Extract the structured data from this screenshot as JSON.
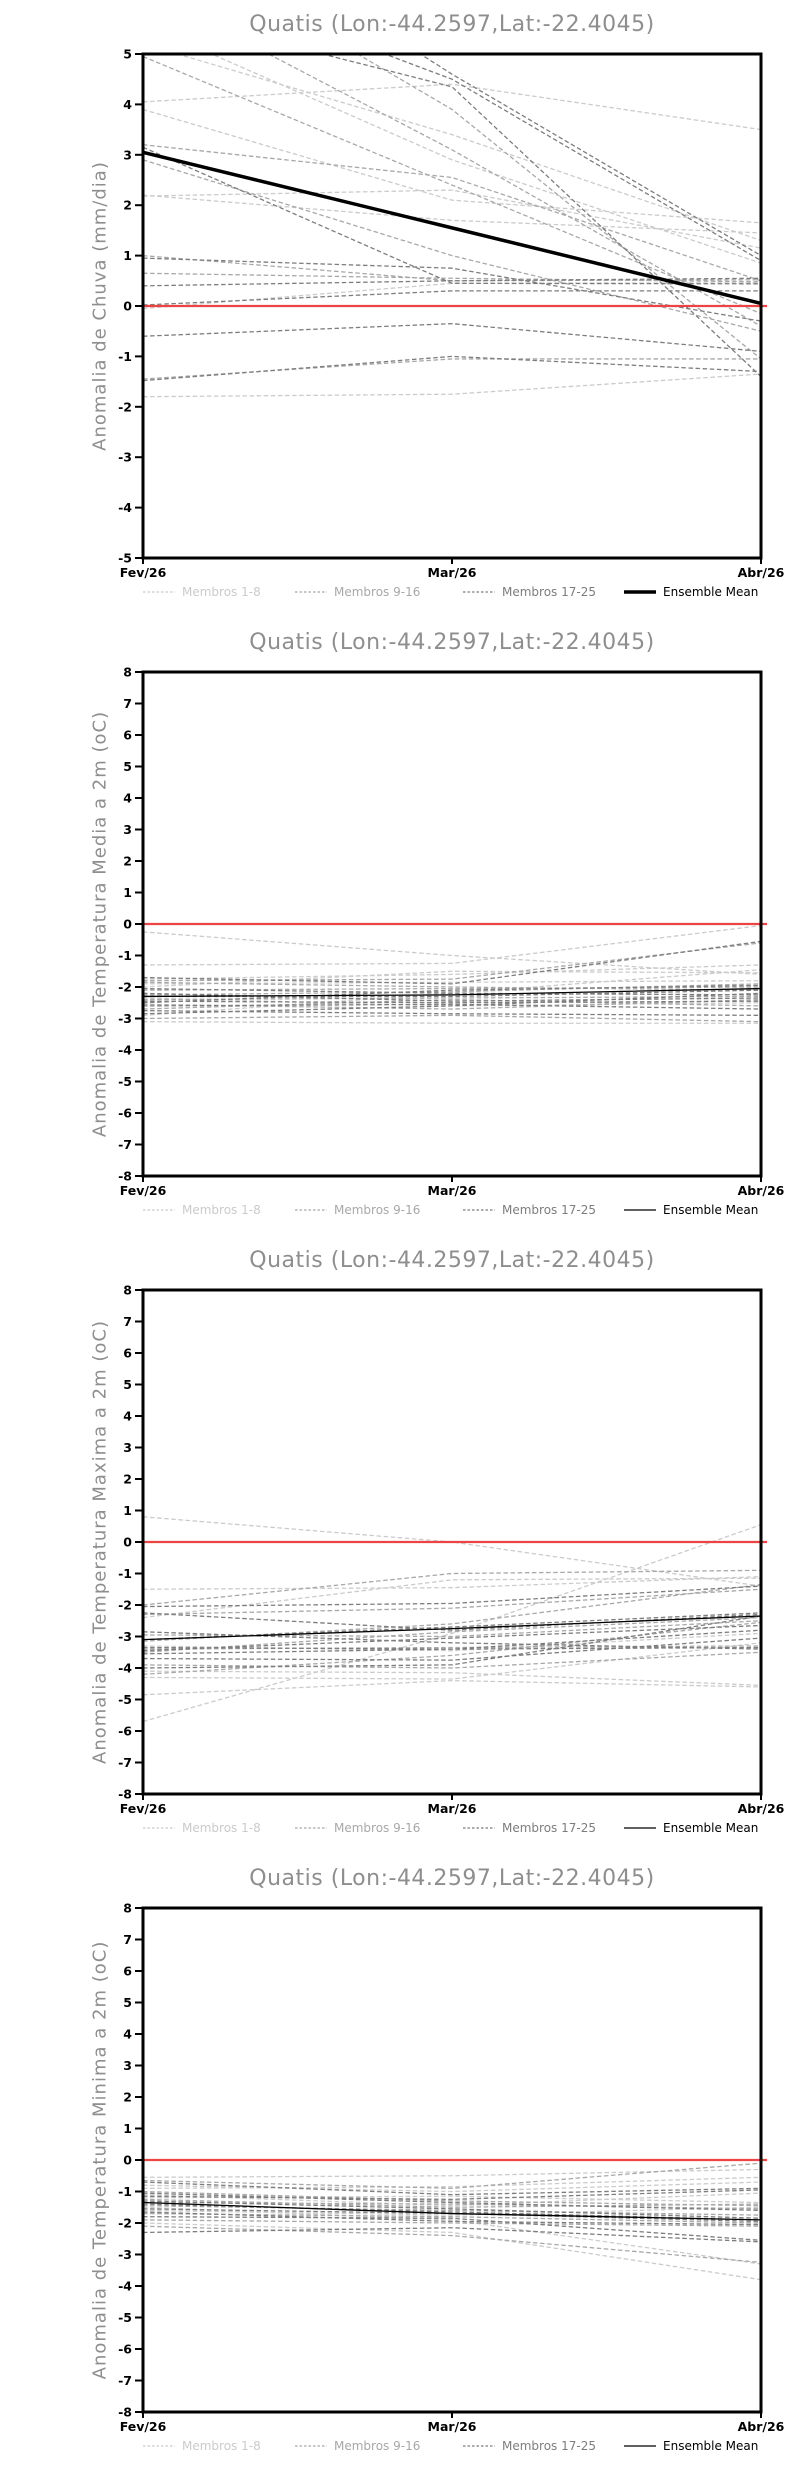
{
  "page": {
    "background": "#ffffff",
    "title_color": "#8e8e8e",
    "axis_color": "#000000"
  },
  "chart_data": [
    {
      "type": "line",
      "title": "Quatis (Lon:-44.2597,Lat:-22.4045)",
      "ylabel": "Anomalia de Chuva (mm/dia)",
      "x_labels": [
        "Fev/26",
        "Mar/26",
        "Abr/26"
      ],
      "ylim": [
        -5,
        5
      ],
      "ytick_step": 1,
      "grid": false,
      "legend_position": "bottom",
      "zero_line": {
        "value": 0,
        "color": "#ee4343"
      },
      "mean": {
        "label": "Ensemble Mean",
        "color": "#000000",
        "width": 3.5,
        "values": [
          3.05,
          1.55,
          0.05
        ]
      },
      "groups": [
        {
          "label": "Membros 1-8",
          "color": "#cbcbcb"
        },
        {
          "label": "Membros 9-16",
          "color": "#a8a8a8"
        },
        {
          "label": "Membros 17-25",
          "color": "#7d7d7d"
        }
      ],
      "members": [
        {
          "group": 0,
          "values": [
            4.05,
            4.4,
            3.5
          ]
        },
        {
          "group": 0,
          "values": [
            3.9,
            2.1,
            1.65
          ]
        },
        {
          "group": 0,
          "values": [
            2.2,
            1.7,
            1.45
          ]
        },
        {
          "group": 0,
          "values": [
            2.18,
            2.3,
            1.15
          ]
        },
        {
          "group": 0,
          "values": [
            -1.8,
            -1.75,
            -1.35
          ]
        },
        {
          "group": 0,
          "values": [
            5.6,
            2.9,
            0.85
          ]
        },
        {
          "group": 0,
          "values": [
            5.2,
            3.4,
            1.3
          ]
        },
        {
          "group": 0,
          "values": [
            -0.05,
            0.45,
            0.46
          ]
        },
        {
          "group": 1,
          "values": [
            6.3,
            3.1,
            -0.4
          ]
        },
        {
          "group": 1,
          "values": [
            4.95,
            2.4,
            -0.15
          ]
        },
        {
          "group": 1,
          "values": [
            3.2,
            2.55,
            0.5
          ]
        },
        {
          "group": 1,
          "values": [
            1.0,
            0.5,
            0.52
          ]
        },
        {
          "group": 1,
          "values": [
            0.65,
            0.55,
            0.48
          ]
        },
        {
          "group": 1,
          "values": [
            -1.45,
            -1.05,
            -1.05
          ]
        },
        {
          "group": 1,
          "values": [
            2.9,
            1.0,
            -0.5
          ]
        },
        {
          "group": 1,
          "values": [
            7.5,
            3.9,
            -1.05
          ]
        },
        {
          "group": 2,
          "values": [
            3.15,
            0.45,
            0.44
          ]
        },
        {
          "group": 2,
          "values": [
            0.95,
            0.75,
            -0.3
          ]
        },
        {
          "group": 2,
          "values": [
            0.4,
            0.5,
            0.55
          ]
        },
        {
          "group": 2,
          "values": [
            0.02,
            0.3,
            0.3
          ]
        },
        {
          "group": 2,
          "values": [
            -0.6,
            -0.35,
            -0.9
          ]
        },
        {
          "group": 2,
          "values": [
            -1.48,
            -1.0,
            -1.3
          ]
        },
        {
          "group": 2,
          "values": [
            6.8,
            4.5,
            0.9
          ]
        },
        {
          "group": 2,
          "values": [
            5.9,
            4.35,
            -1.4
          ]
        },
        {
          "group": 2,
          "values": [
            8.5,
            4.6,
            1.0
          ]
        }
      ]
    },
    {
      "type": "line",
      "title": "Quatis (Lon:-44.2597,Lat:-22.4045)",
      "ylabel": "Anomalia de Temperatura Media a 2m (oC)",
      "x_labels": [
        "Fev/26",
        "Mar/26",
        "Abr/26"
      ],
      "ylim": [
        -8,
        8
      ],
      "ytick_step": 1,
      "grid": false,
      "legend_position": "bottom",
      "zero_line": {
        "value": 0,
        "color": "#ee4343"
      },
      "mean": {
        "label": "Ensemble Mean",
        "color": "#000000",
        "width": 1.3,
        "values": [
          -2.3,
          -2.25,
          -2.05
        ]
      },
      "groups": [
        {
          "label": "Membros 1-8",
          "color": "#cbcbcb"
        },
        {
          "label": "Membros 9-16",
          "color": "#a8a8a8"
        },
        {
          "label": "Membros 17-25",
          "color": "#7d7d7d"
        }
      ],
      "members": [
        {
          "group": 0,
          "values": [
            -0.25,
            -1.0,
            -1.6
          ]
        },
        {
          "group": 0,
          "values": [
            -1.3,
            -1.25,
            -0.05
          ]
        },
        {
          "group": 0,
          "values": [
            -1.75,
            -1.6,
            -1.3
          ]
        },
        {
          "group": 0,
          "values": [
            -2.9,
            -2.2,
            -1.45
          ]
        },
        {
          "group": 0,
          "values": [
            -3.1,
            -3.15,
            -3.15
          ]
        },
        {
          "group": 0,
          "values": [
            -2.0,
            -1.5,
            -1.55
          ]
        },
        {
          "group": 0,
          "values": [
            -2.35,
            -2.6,
            -2.5
          ]
        },
        {
          "group": 0,
          "values": [
            -1.9,
            -1.85,
            -1.8
          ]
        },
        {
          "group": 1,
          "values": [
            -1.8,
            -1.75,
            -0.6
          ]
        },
        {
          "group": 1,
          "values": [
            -2.1,
            -2.05,
            -2.0
          ]
        },
        {
          "group": 1,
          "values": [
            -2.4,
            -2.35,
            -2.3
          ]
        },
        {
          "group": 1,
          "values": [
            -2.55,
            -2.7,
            -2.4
          ]
        },
        {
          "group": 1,
          "values": [
            -2.7,
            -2.4,
            -2.6
          ]
        },
        {
          "group": 1,
          "values": [
            -3.0,
            -2.9,
            -3.1
          ]
        },
        {
          "group": 1,
          "values": [
            -1.85,
            -2.0,
            -2.1
          ]
        },
        {
          "group": 1,
          "values": [
            -2.25,
            -2.15,
            -1.9
          ]
        },
        {
          "group": 2,
          "values": [
            -1.7,
            -1.9,
            -0.55
          ]
        },
        {
          "group": 2,
          "values": [
            -2.05,
            -2.2,
            -2.25
          ]
        },
        {
          "group": 2,
          "values": [
            -2.3,
            -2.3,
            -2.1
          ]
        },
        {
          "group": 2,
          "values": [
            -2.45,
            -2.5,
            -2.45
          ]
        },
        {
          "group": 2,
          "values": [
            -2.6,
            -2.55,
            -2.7
          ]
        },
        {
          "group": 2,
          "values": [
            -2.75,
            -2.85,
            -2.9
          ]
        },
        {
          "group": 2,
          "values": [
            -2.85,
            -2.6,
            -2.2
          ]
        },
        {
          "group": 2,
          "values": [
            -2.2,
            -2.45,
            -2.35
          ]
        },
        {
          "group": 2,
          "values": [
            -2.5,
            -2.1,
            -1.95
          ]
        }
      ]
    },
    {
      "type": "line",
      "title": "Quatis (Lon:-44.2597,Lat:-22.4045)",
      "ylabel": "Anomalia de Temperatura Maxima a 2m (oC)",
      "x_labels": [
        "Fev/26",
        "Mar/26",
        "Abr/26"
      ],
      "ylim": [
        -8,
        8
      ],
      "ytick_step": 1,
      "grid": false,
      "legend_position": "bottom",
      "zero_line": {
        "value": 0,
        "color": "#ee4343"
      },
      "mean": {
        "label": "Ensemble Mean",
        "color": "#000000",
        "width": 1.3,
        "values": [
          -3.1,
          -2.75,
          -2.35
        ]
      },
      "groups": [
        {
          "label": "Membros 1-8",
          "color": "#cbcbcb"
        },
        {
          "label": "Membros 9-16",
          "color": "#a8a8a8"
        },
        {
          "label": "Membros 17-25",
          "color": "#7d7d7d"
        }
      ],
      "members": [
        {
          "group": 0,
          "values": [
            0.8,
            0.0,
            -1.4
          ]
        },
        {
          "group": 0,
          "values": [
            -1.5,
            -1.45,
            -1.1
          ]
        },
        {
          "group": 0,
          "values": [
            -4.85,
            -4.4,
            -4.6
          ]
        },
        {
          "group": 0,
          "values": [
            -5.7,
            -2.9,
            0.55
          ]
        },
        {
          "group": 0,
          "values": [
            -4.3,
            -4.35,
            -3.2
          ]
        },
        {
          "group": 0,
          "values": [
            -2.4,
            -1.2,
            -1.15
          ]
        },
        {
          "group": 0,
          "values": [
            -3.3,
            -3.45,
            -2.9
          ]
        },
        {
          "group": 0,
          "values": [
            -4.1,
            -4.15,
            -4.55
          ]
        },
        {
          "group": 1,
          "values": [
            -2.0,
            -1.0,
            -0.9
          ]
        },
        {
          "group": 1,
          "values": [
            -2.3,
            -2.1,
            -1.5
          ]
        },
        {
          "group": 1,
          "values": [
            -3.5,
            -2.85,
            -2.4
          ]
        },
        {
          "group": 1,
          "values": [
            -3.4,
            -3.35,
            -3.3
          ]
        },
        {
          "group": 1,
          "values": [
            -4.2,
            -3.6,
            -2.55
          ]
        },
        {
          "group": 1,
          "values": [
            -3.9,
            -4.0,
            -3.5
          ]
        },
        {
          "group": 1,
          "values": [
            -2.95,
            -3.0,
            -2.5
          ]
        },
        {
          "group": 1,
          "values": [
            -3.15,
            -2.6,
            -1.35
          ]
        },
        {
          "group": 2,
          "values": [
            -2.05,
            -1.95,
            -1.4
          ]
        },
        {
          "group": 2,
          "values": [
            -2.25,
            -2.8,
            -2.3
          ]
        },
        {
          "group": 2,
          "values": [
            -3.35,
            -3.4,
            -2.8
          ]
        },
        {
          "group": 2,
          "values": [
            -3.55,
            -3.4,
            -3.35
          ]
        },
        {
          "group": 2,
          "values": [
            -3.7,
            -3.75,
            -3.05
          ]
        },
        {
          "group": 2,
          "values": [
            -4.0,
            -3.9,
            -2.35
          ]
        },
        {
          "group": 2,
          "values": [
            -3.1,
            -2.7,
            -2.25
          ]
        },
        {
          "group": 2,
          "values": [
            -3.45,
            -3.05,
            -2.65
          ]
        },
        {
          "group": 2,
          "values": [
            -2.85,
            -3.2,
            -3.4
          ]
        }
      ]
    },
    {
      "type": "line",
      "title": "Quatis (Lon:-44.2597,Lat:-22.4045)",
      "ylabel": "Anomalia de Temperatura Minima a 2m (oC)",
      "x_labels": [
        "Fev/26",
        "Mar/26",
        "Abr/26"
      ],
      "ylim": [
        -8,
        8
      ],
      "ytick_step": 1,
      "grid": false,
      "legend_position": "bottom",
      "zero_line": {
        "value": 0,
        "color": "#ee4343"
      },
      "mean": {
        "label": "Ensemble Mean",
        "color": "#000000",
        "width": 1.3,
        "values": [
          -1.35,
          -1.7,
          -1.9
        ]
      },
      "groups": [
        {
          "label": "Membros 1-8",
          "color": "#cbcbcb"
        },
        {
          "label": "Membros 9-16",
          "color": "#a8a8a8"
        },
        {
          "label": "Membros 17-25",
          "color": "#7d7d7d"
        }
      ],
      "members": [
        {
          "group": 0,
          "values": [
            -0.55,
            -0.5,
            -0.3
          ]
        },
        {
          "group": 0,
          "values": [
            -0.8,
            -1.0,
            -0.7
          ]
        },
        {
          "group": 0,
          "values": [
            -1.1,
            -1.45,
            -1.05
          ]
        },
        {
          "group": 0,
          "values": [
            -2.0,
            -2.3,
            -3.8
          ]
        },
        {
          "group": 0,
          "values": [
            -1.5,
            -1.9,
            -3.3
          ]
        },
        {
          "group": 0,
          "values": [
            -1.2,
            -1.15,
            -1.35
          ]
        },
        {
          "group": 0,
          "values": [
            -0.9,
            -0.85,
            -0.55
          ]
        },
        {
          "group": 0,
          "values": [
            -1.6,
            -1.75,
            -1.5
          ]
        },
        {
          "group": 1,
          "values": [
            -0.65,
            -0.9,
            -0.1
          ]
        },
        {
          "group": 1,
          "values": [
            -1.0,
            -1.3,
            -1.45
          ]
        },
        {
          "group": 1,
          "values": [
            -1.35,
            -1.4,
            -1.55
          ]
        },
        {
          "group": 1,
          "values": [
            -1.7,
            -1.8,
            -2.0
          ]
        },
        {
          "group": 1,
          "values": [
            -1.9,
            -2.0,
            -2.1
          ]
        },
        {
          "group": 1,
          "values": [
            -2.1,
            -2.4,
            -3.25
          ]
        },
        {
          "group": 1,
          "values": [
            -1.25,
            -1.5,
            -1.4
          ]
        },
        {
          "group": 1,
          "values": [
            -1.45,
            -1.6,
            -1.75
          ]
        },
        {
          "group": 2,
          "values": [
            -0.7,
            -1.1,
            -0.9
          ]
        },
        {
          "group": 2,
          "values": [
            -1.05,
            -1.35,
            -1.6
          ]
        },
        {
          "group": 2,
          "values": [
            -1.3,
            -1.55,
            -1.85
          ]
        },
        {
          "group": 2,
          "values": [
            -1.55,
            -1.7,
            -1.95
          ]
        },
        {
          "group": 2,
          "values": [
            -1.8,
            -1.85,
            -2.55
          ]
        },
        {
          "group": 2,
          "values": [
            -2.3,
            -2.15,
            -2.6
          ]
        },
        {
          "group": 2,
          "values": [
            -1.15,
            -1.25,
            -0.95
          ]
        },
        {
          "group": 2,
          "values": [
            -1.4,
            -1.65,
            -1.9
          ]
        },
        {
          "group": 2,
          "values": [
            -1.65,
            -1.95,
            -2.05
          ]
        }
      ]
    }
  ]
}
